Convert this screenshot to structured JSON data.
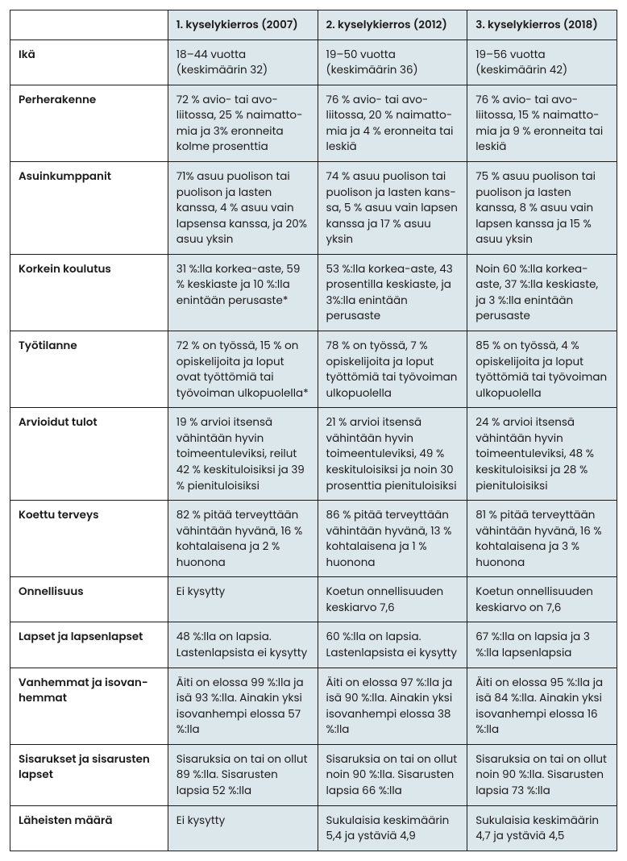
{
  "table": {
    "type": "table",
    "colors": {
      "cell_bg": "#dce7ec",
      "label_bg": "#ffffff",
      "border": "#1a1a1a",
      "text": "#1a1a1a"
    },
    "typography": {
      "body_fontsize_pt": 10,
      "header_fontweight": "600",
      "label_fontweight": "600"
    },
    "column_widths_pct": [
      26,
      24.666,
      24.666,
      24.666
    ],
    "columns": [
      "",
      "1. kyselykierros (2007)",
      "2. kyselykierros (2012)",
      "3. kyselykierros (2018)"
    ],
    "rows": [
      {
        "label": "Ikä",
        "c1": "18–44 vuotta (keskimäärin 32)",
        "c2": "19–50 vuotta (keskimäärin 36)",
        "c3": "19–56 vuotta (keskimäärin 42)"
      },
      {
        "label": "Perherakenne",
        "c1": "72 % avio- tai avo­liitossa, 25 % naimatto­mia ja 3% eronneita kolme prosenttia",
        "c2": "76 % avio- tai avo­liitossa, 20 % naimatto­mia ja 4 % eronneita tai leskiä",
        "c3": "76 % avio- tai avo­liitossa, 15 % naimatto­mia ja 9 % eronneita tai leskiä"
      },
      {
        "label": "Asuinkumppanit",
        "c1": "71% asuu puolison tai puolison ja lasten kanssa, 4 % asuu vain lapsensa kanssa, ja 20% asuu yksin",
        "c2": "74 % asuu puolison tai puolison ja lasten kans­sa, 5 % asuu vain lapsen kanssa ja 17 % asuu yksin",
        "c3": "75 % asuu puolison tai puolison ja lasten kanssa, 8 % asuu vain lapsen kanssa ja 15 % asuu yksin"
      },
      {
        "label": "Korkein koulutus",
        "c1": "31 %:lla korkea-aste, 59 % keskiaste ja 10 %:lla enintään perusaste*",
        "c2": "53 %:lla korkea-aste, 43 prosentilla keski­aste, ja 3%:lla enintään perusaste",
        "c3": "Noin 60 %:lla korkea-aste, 37 %:lla keskiaste, ja 3 %:lla enintään perusaste"
      },
      {
        "label": "Työtilanne",
        "c1": "72 % on työssä, 15 % on opiskelijoita ja loput ovat työttömiä tai työvoiman ulkopuolella*",
        "c2": "78 % on työssä, 7 % opiskelijoita ja loput työttömiä tai työvoiman ulkopuolella",
        "c3": "85 % on työssä, 4 % opiskelijoita ja loput työttömiä tai työvoiman ulkopuolella"
      },
      {
        "label": "Arvioidut tulot",
        "c1": "19 % arvioi itsensä vähintään hyvin toimeentuleviksi, reilut 42 % keskituloisiksi ja 39 % pienituloisiksi",
        "c2": "21 % arvioi itsensä vähintään hyvin toimeentuleviksi, 49 % keskituloisiksi ja noin 30 prosenttia pieni­tuloisiksi",
        "c3": "24 % arvioi itsensä vähintään hyvin toimeentuleviksi, 48 % keskituloisiksi ja 28 % pienituloisiksi"
      },
      {
        "label": "Koettu terveys",
        "c1": "82 % pitää terveyttään vähintään hyvänä, 16 % kohtalaisena ja 2 % huonona",
        "c2": "86 % pitää terveyttään vähintään hyvänä, 13 % kohtalaisena ja 1 % huonona",
        "c3": "81 % pitää terveyttään vähintään hyvänä, 16 % kohtalaisena ja 3 % huonona"
      },
      {
        "label": "Onnellisuus",
        "c1": "Ei kysytty",
        "c2": "Koetun onnellisuuden keskiarvo 7,6",
        "c3": "Koetun onnellisuuden keskiarvo on 7,6"
      },
      {
        "label": "Lapset ja lapsenlapset",
        "c1": "48 %:lla on lapsia. Lastenlapsista ei kysytty",
        "c2": "60 %:lla on lapsia. Lastenlapsista ei kysytty",
        "c3": "67 %:lla on lapsia ja 3 %:lla lapsenlapsia"
      },
      {
        "label": "Vanhemmat ja isovan­hemmat",
        "c1": "Äiti on elossa 99 %:lla ja isä 93 %:lla. Ainakin yksi isovanhempi elossa 57 %:lla",
        "c2": "Äiti on elossa 97 %:lla ja isä 90 %:lla. Ainakin yksi isovanhempi elossa 38 %:lla",
        "c3": "Äiti on elossa 95 %:lla ja isä 84 %:lla. Ainakin yksi isovanhempi elossa 16 %:lla"
      },
      {
        "label": "Sisarukset ja sisarusten lapset",
        "c1": "Sisaruksia on tai on ollut 89 %:lla. Sisarusten lapsia 52 %:lla",
        "c2": "Sisaruksia on tai on ollut noin 90 %:lla. Sisarusten lapsia 66 %:lla",
        "c3": "Sisaruksia on tai on ollut noin 90 %:lla. Sisarusten lapsia 73 %:lla"
      },
      {
        "label": "Läheisten määrä",
        "c1": "Ei kysytty",
        "c2": "Sukulaisia keskimäärin 5,4 ja ystäviä 4,9",
        "c3": "Sukulaisia keskimäärin 4,7 ja ystäviä 4,5"
      }
    ]
  }
}
